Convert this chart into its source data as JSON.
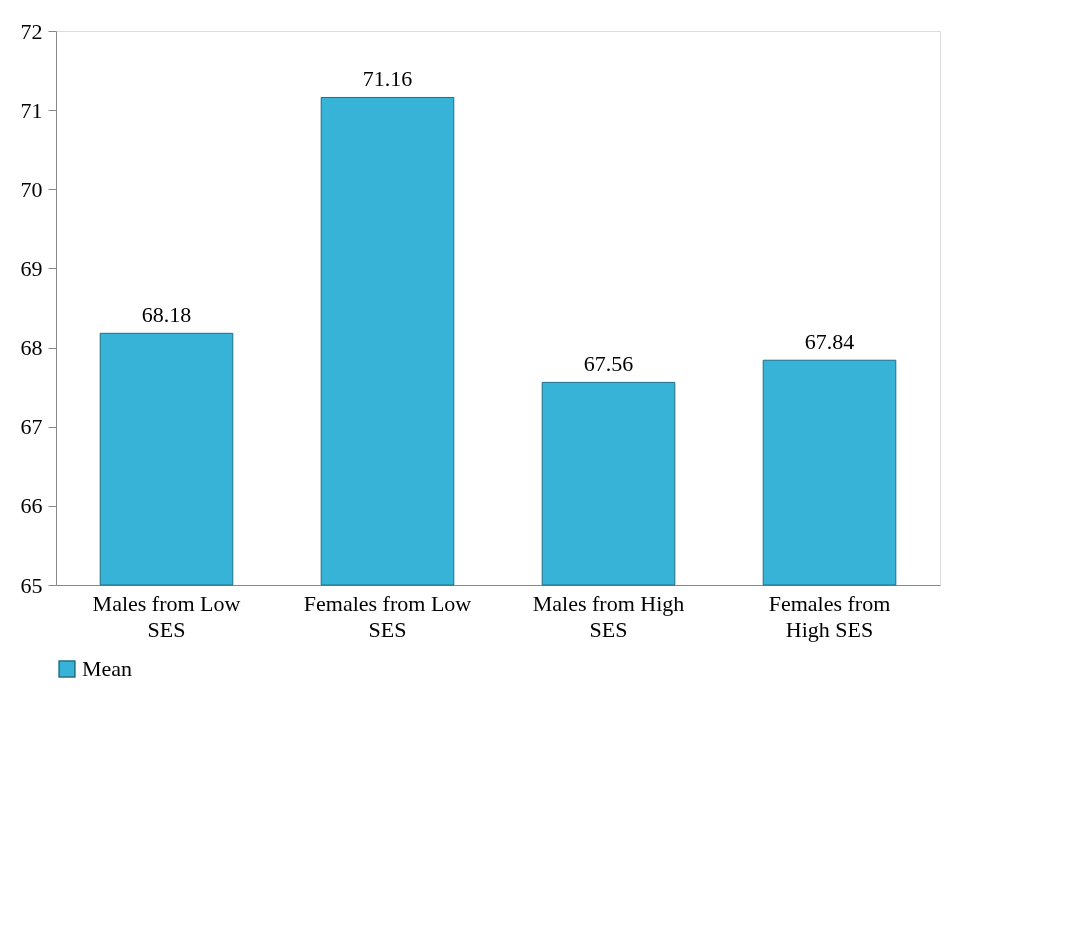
{
  "chart_data": {
    "type": "bar",
    "categories": [
      "Males from Low SES",
      "Females from Low SES",
      "Males from High SES",
      "Females from High SES"
    ],
    "series": [
      {
        "name": "Mean",
        "color": "#36b3d6",
        "values": [
          68.18,
          71.16,
          67.56,
          67.84
        ]
      }
    ],
    "ylim": [
      65,
      72
    ],
    "yticks": [
      65,
      66,
      67,
      68,
      69,
      70,
      71,
      72
    ],
    "data_labels": true,
    "grid": false,
    "legend": "bottom"
  }
}
